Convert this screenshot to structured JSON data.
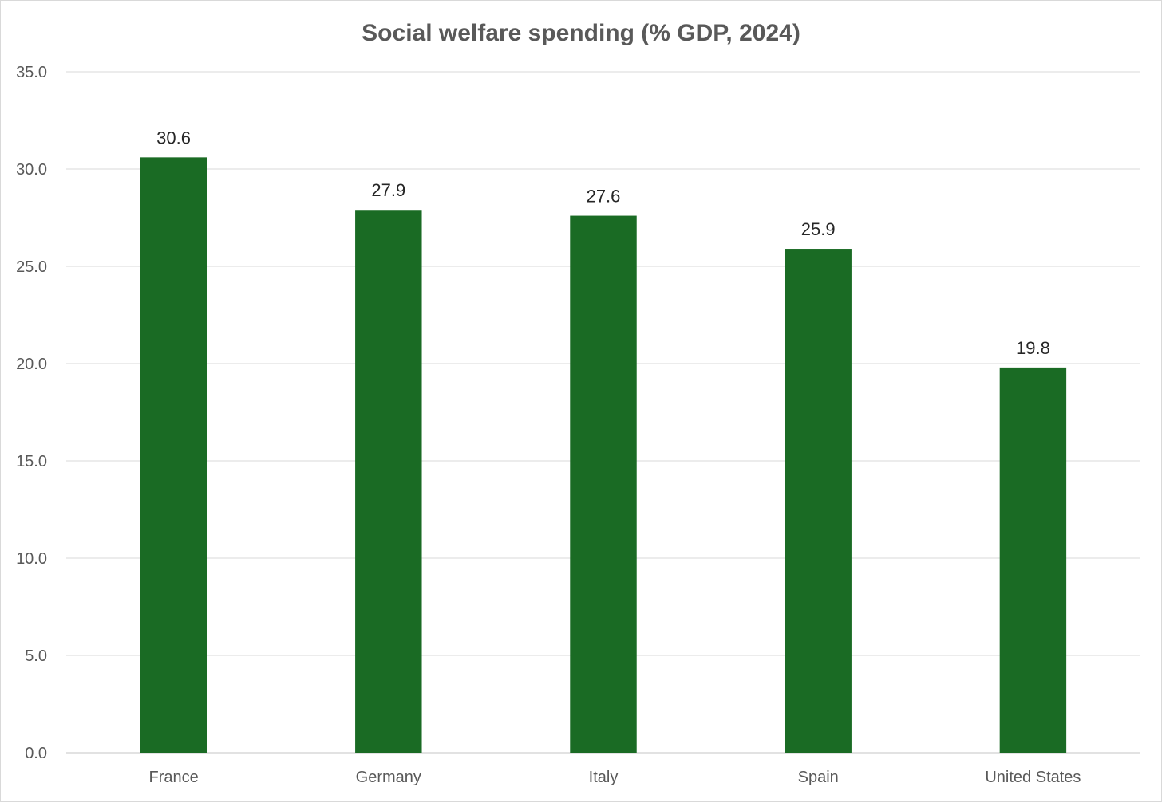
{
  "chart_data": {
    "type": "bar",
    "title": "Social welfare spending (% GDP, 2024)",
    "categories": [
      "France",
      "Germany",
      "Italy",
      "Spain",
      "United States"
    ],
    "values": [
      30.6,
      27.9,
      27.6,
      25.9,
      19.8
    ],
    "value_labels": [
      "30.6",
      "27.9",
      "27.6",
      "25.9",
      "19.8"
    ],
    "yticks": [
      "0.0",
      "5.0",
      "10.0",
      "15.0",
      "20.0",
      "25.0",
      "30.0",
      "35.0"
    ],
    "ylim": [
      0,
      35
    ],
    "ytick_step": 5,
    "xlabel": "",
    "ylabel": "",
    "grid": true,
    "legend": "none",
    "bar_color": "#1a6b24"
  }
}
